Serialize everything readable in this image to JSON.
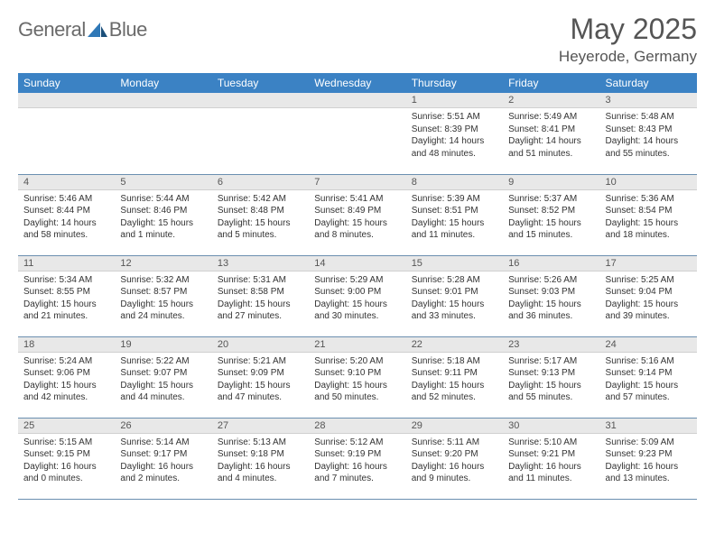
{
  "brand": {
    "word1": "General",
    "word2": "Blue"
  },
  "title": "May 2025",
  "location": "Heyerode, Germany",
  "colors": {
    "header_bg": "#3b82c4",
    "header_fg": "#ffffff",
    "daynum_bg": "#e8e8e8",
    "rule": "#6b8fb0",
    "text": "#333333",
    "brand_gray": "#6b6b6b",
    "brand_blue": "#2f78b7"
  },
  "day_headers": [
    "Sunday",
    "Monday",
    "Tuesday",
    "Wednesday",
    "Thursday",
    "Friday",
    "Saturday"
  ],
  "weeks": [
    [
      {
        "n": "",
        "sr": "",
        "ss": "",
        "dl": ""
      },
      {
        "n": "",
        "sr": "",
        "ss": "",
        "dl": ""
      },
      {
        "n": "",
        "sr": "",
        "ss": "",
        "dl": ""
      },
      {
        "n": "",
        "sr": "",
        "ss": "",
        "dl": ""
      },
      {
        "n": "1",
        "sr": "Sunrise: 5:51 AM",
        "ss": "Sunset: 8:39 PM",
        "dl": "Daylight: 14 hours and 48 minutes."
      },
      {
        "n": "2",
        "sr": "Sunrise: 5:49 AM",
        "ss": "Sunset: 8:41 PM",
        "dl": "Daylight: 14 hours and 51 minutes."
      },
      {
        "n": "3",
        "sr": "Sunrise: 5:48 AM",
        "ss": "Sunset: 8:43 PM",
        "dl": "Daylight: 14 hours and 55 minutes."
      }
    ],
    [
      {
        "n": "4",
        "sr": "Sunrise: 5:46 AM",
        "ss": "Sunset: 8:44 PM",
        "dl": "Daylight: 14 hours and 58 minutes."
      },
      {
        "n": "5",
        "sr": "Sunrise: 5:44 AM",
        "ss": "Sunset: 8:46 PM",
        "dl": "Daylight: 15 hours and 1 minute."
      },
      {
        "n": "6",
        "sr": "Sunrise: 5:42 AM",
        "ss": "Sunset: 8:48 PM",
        "dl": "Daylight: 15 hours and 5 minutes."
      },
      {
        "n": "7",
        "sr": "Sunrise: 5:41 AM",
        "ss": "Sunset: 8:49 PM",
        "dl": "Daylight: 15 hours and 8 minutes."
      },
      {
        "n": "8",
        "sr": "Sunrise: 5:39 AM",
        "ss": "Sunset: 8:51 PM",
        "dl": "Daylight: 15 hours and 11 minutes."
      },
      {
        "n": "9",
        "sr": "Sunrise: 5:37 AM",
        "ss": "Sunset: 8:52 PM",
        "dl": "Daylight: 15 hours and 15 minutes."
      },
      {
        "n": "10",
        "sr": "Sunrise: 5:36 AM",
        "ss": "Sunset: 8:54 PM",
        "dl": "Daylight: 15 hours and 18 minutes."
      }
    ],
    [
      {
        "n": "11",
        "sr": "Sunrise: 5:34 AM",
        "ss": "Sunset: 8:55 PM",
        "dl": "Daylight: 15 hours and 21 minutes."
      },
      {
        "n": "12",
        "sr": "Sunrise: 5:32 AM",
        "ss": "Sunset: 8:57 PM",
        "dl": "Daylight: 15 hours and 24 minutes."
      },
      {
        "n": "13",
        "sr": "Sunrise: 5:31 AM",
        "ss": "Sunset: 8:58 PM",
        "dl": "Daylight: 15 hours and 27 minutes."
      },
      {
        "n": "14",
        "sr": "Sunrise: 5:29 AM",
        "ss": "Sunset: 9:00 PM",
        "dl": "Daylight: 15 hours and 30 minutes."
      },
      {
        "n": "15",
        "sr": "Sunrise: 5:28 AM",
        "ss": "Sunset: 9:01 PM",
        "dl": "Daylight: 15 hours and 33 minutes."
      },
      {
        "n": "16",
        "sr": "Sunrise: 5:26 AM",
        "ss": "Sunset: 9:03 PM",
        "dl": "Daylight: 15 hours and 36 minutes."
      },
      {
        "n": "17",
        "sr": "Sunrise: 5:25 AM",
        "ss": "Sunset: 9:04 PM",
        "dl": "Daylight: 15 hours and 39 minutes."
      }
    ],
    [
      {
        "n": "18",
        "sr": "Sunrise: 5:24 AM",
        "ss": "Sunset: 9:06 PM",
        "dl": "Daylight: 15 hours and 42 minutes."
      },
      {
        "n": "19",
        "sr": "Sunrise: 5:22 AM",
        "ss": "Sunset: 9:07 PM",
        "dl": "Daylight: 15 hours and 44 minutes."
      },
      {
        "n": "20",
        "sr": "Sunrise: 5:21 AM",
        "ss": "Sunset: 9:09 PM",
        "dl": "Daylight: 15 hours and 47 minutes."
      },
      {
        "n": "21",
        "sr": "Sunrise: 5:20 AM",
        "ss": "Sunset: 9:10 PM",
        "dl": "Daylight: 15 hours and 50 minutes."
      },
      {
        "n": "22",
        "sr": "Sunrise: 5:18 AM",
        "ss": "Sunset: 9:11 PM",
        "dl": "Daylight: 15 hours and 52 minutes."
      },
      {
        "n": "23",
        "sr": "Sunrise: 5:17 AM",
        "ss": "Sunset: 9:13 PM",
        "dl": "Daylight: 15 hours and 55 minutes."
      },
      {
        "n": "24",
        "sr": "Sunrise: 5:16 AM",
        "ss": "Sunset: 9:14 PM",
        "dl": "Daylight: 15 hours and 57 minutes."
      }
    ],
    [
      {
        "n": "25",
        "sr": "Sunrise: 5:15 AM",
        "ss": "Sunset: 9:15 PM",
        "dl": "Daylight: 16 hours and 0 minutes."
      },
      {
        "n": "26",
        "sr": "Sunrise: 5:14 AM",
        "ss": "Sunset: 9:17 PM",
        "dl": "Daylight: 16 hours and 2 minutes."
      },
      {
        "n": "27",
        "sr": "Sunrise: 5:13 AM",
        "ss": "Sunset: 9:18 PM",
        "dl": "Daylight: 16 hours and 4 minutes."
      },
      {
        "n": "28",
        "sr": "Sunrise: 5:12 AM",
        "ss": "Sunset: 9:19 PM",
        "dl": "Daylight: 16 hours and 7 minutes."
      },
      {
        "n": "29",
        "sr": "Sunrise: 5:11 AM",
        "ss": "Sunset: 9:20 PM",
        "dl": "Daylight: 16 hours and 9 minutes."
      },
      {
        "n": "30",
        "sr": "Sunrise: 5:10 AM",
        "ss": "Sunset: 9:21 PM",
        "dl": "Daylight: 16 hours and 11 minutes."
      },
      {
        "n": "31",
        "sr": "Sunrise: 5:09 AM",
        "ss": "Sunset: 9:23 PM",
        "dl": "Daylight: 16 hours and 13 minutes."
      }
    ]
  ]
}
